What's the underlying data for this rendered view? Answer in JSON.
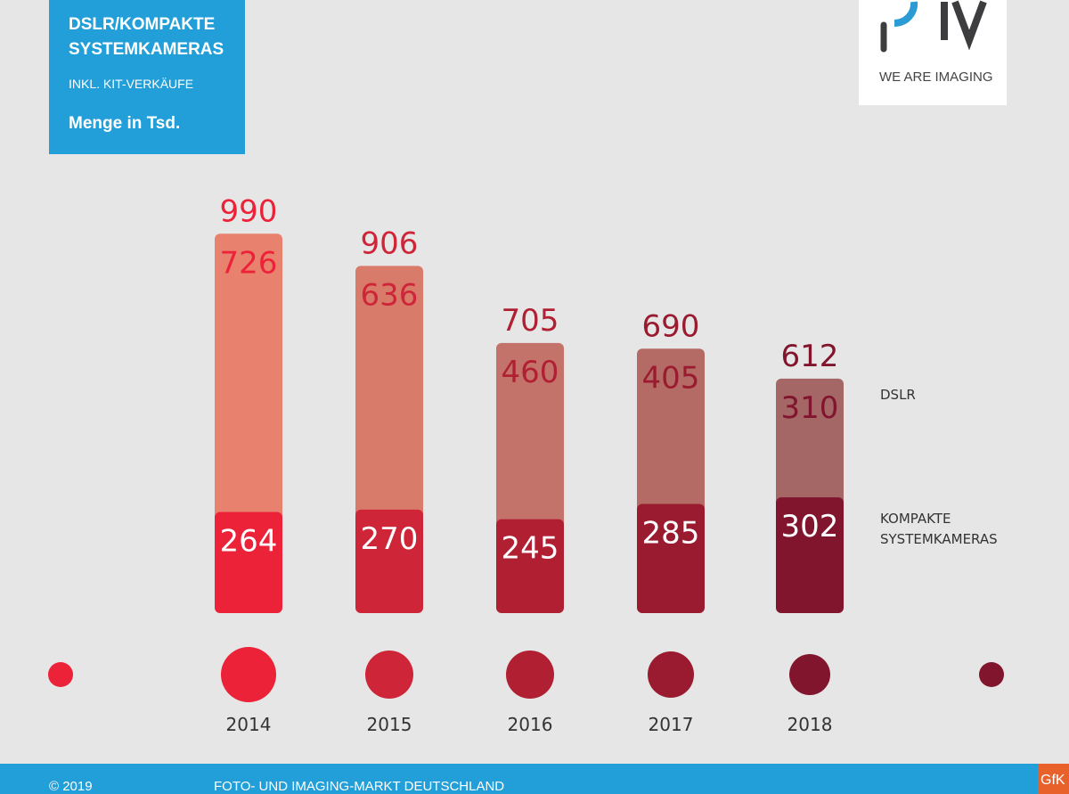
{
  "header": {
    "title_line1": "DSLR/KOMPAKTE",
    "title_line2": "SYSTEMKAMERAS",
    "subtitle": "INKL. KIT-VERKÄUFE",
    "unit": "Menge in Tsd."
  },
  "logo": {
    "text": "PIV",
    "tagline": "WE ARE IMAGING"
  },
  "footer": {
    "copyright": "© 2019",
    "title": "FOTO- UND IMAGING-MARKT DEUTSCHLAND",
    "partner": "GfK"
  },
  "chart_data": {
    "type": "bar",
    "stacked": true,
    "categories": [
      "2014",
      "2015",
      "2016",
      "2017",
      "2018"
    ],
    "series": [
      {
        "name": "KOMPAKTE SYSTEMKAMERAS",
        "values": [
          264,
          270,
          245,
          285,
          302
        ],
        "colors": [
          "#ec2239",
          "#cf2538",
          "#b11f32",
          "#9a1b30",
          "#80152d"
        ]
      },
      {
        "name": "DSLR",
        "values": [
          726,
          636,
          460,
          405,
          310
        ],
        "colors": [
          "#e8826e",
          "#d97b6b",
          "#c4736a",
          "#b46b66",
          "#a56666"
        ]
      }
    ],
    "totals": [
      990,
      906,
      705,
      690,
      612
    ],
    "legend": {
      "dslr": "DSLR",
      "kompakt_line1": "KOMPAKTE",
      "kompakt_line2": "SYSTEMKAMERAS",
      "placement": "right"
    },
    "timeline_colors": [
      "#ec2239",
      "#ec2239",
      "#cf2538",
      "#b11f32",
      "#9a1b30",
      "#80152d",
      "#80152d"
    ]
  }
}
